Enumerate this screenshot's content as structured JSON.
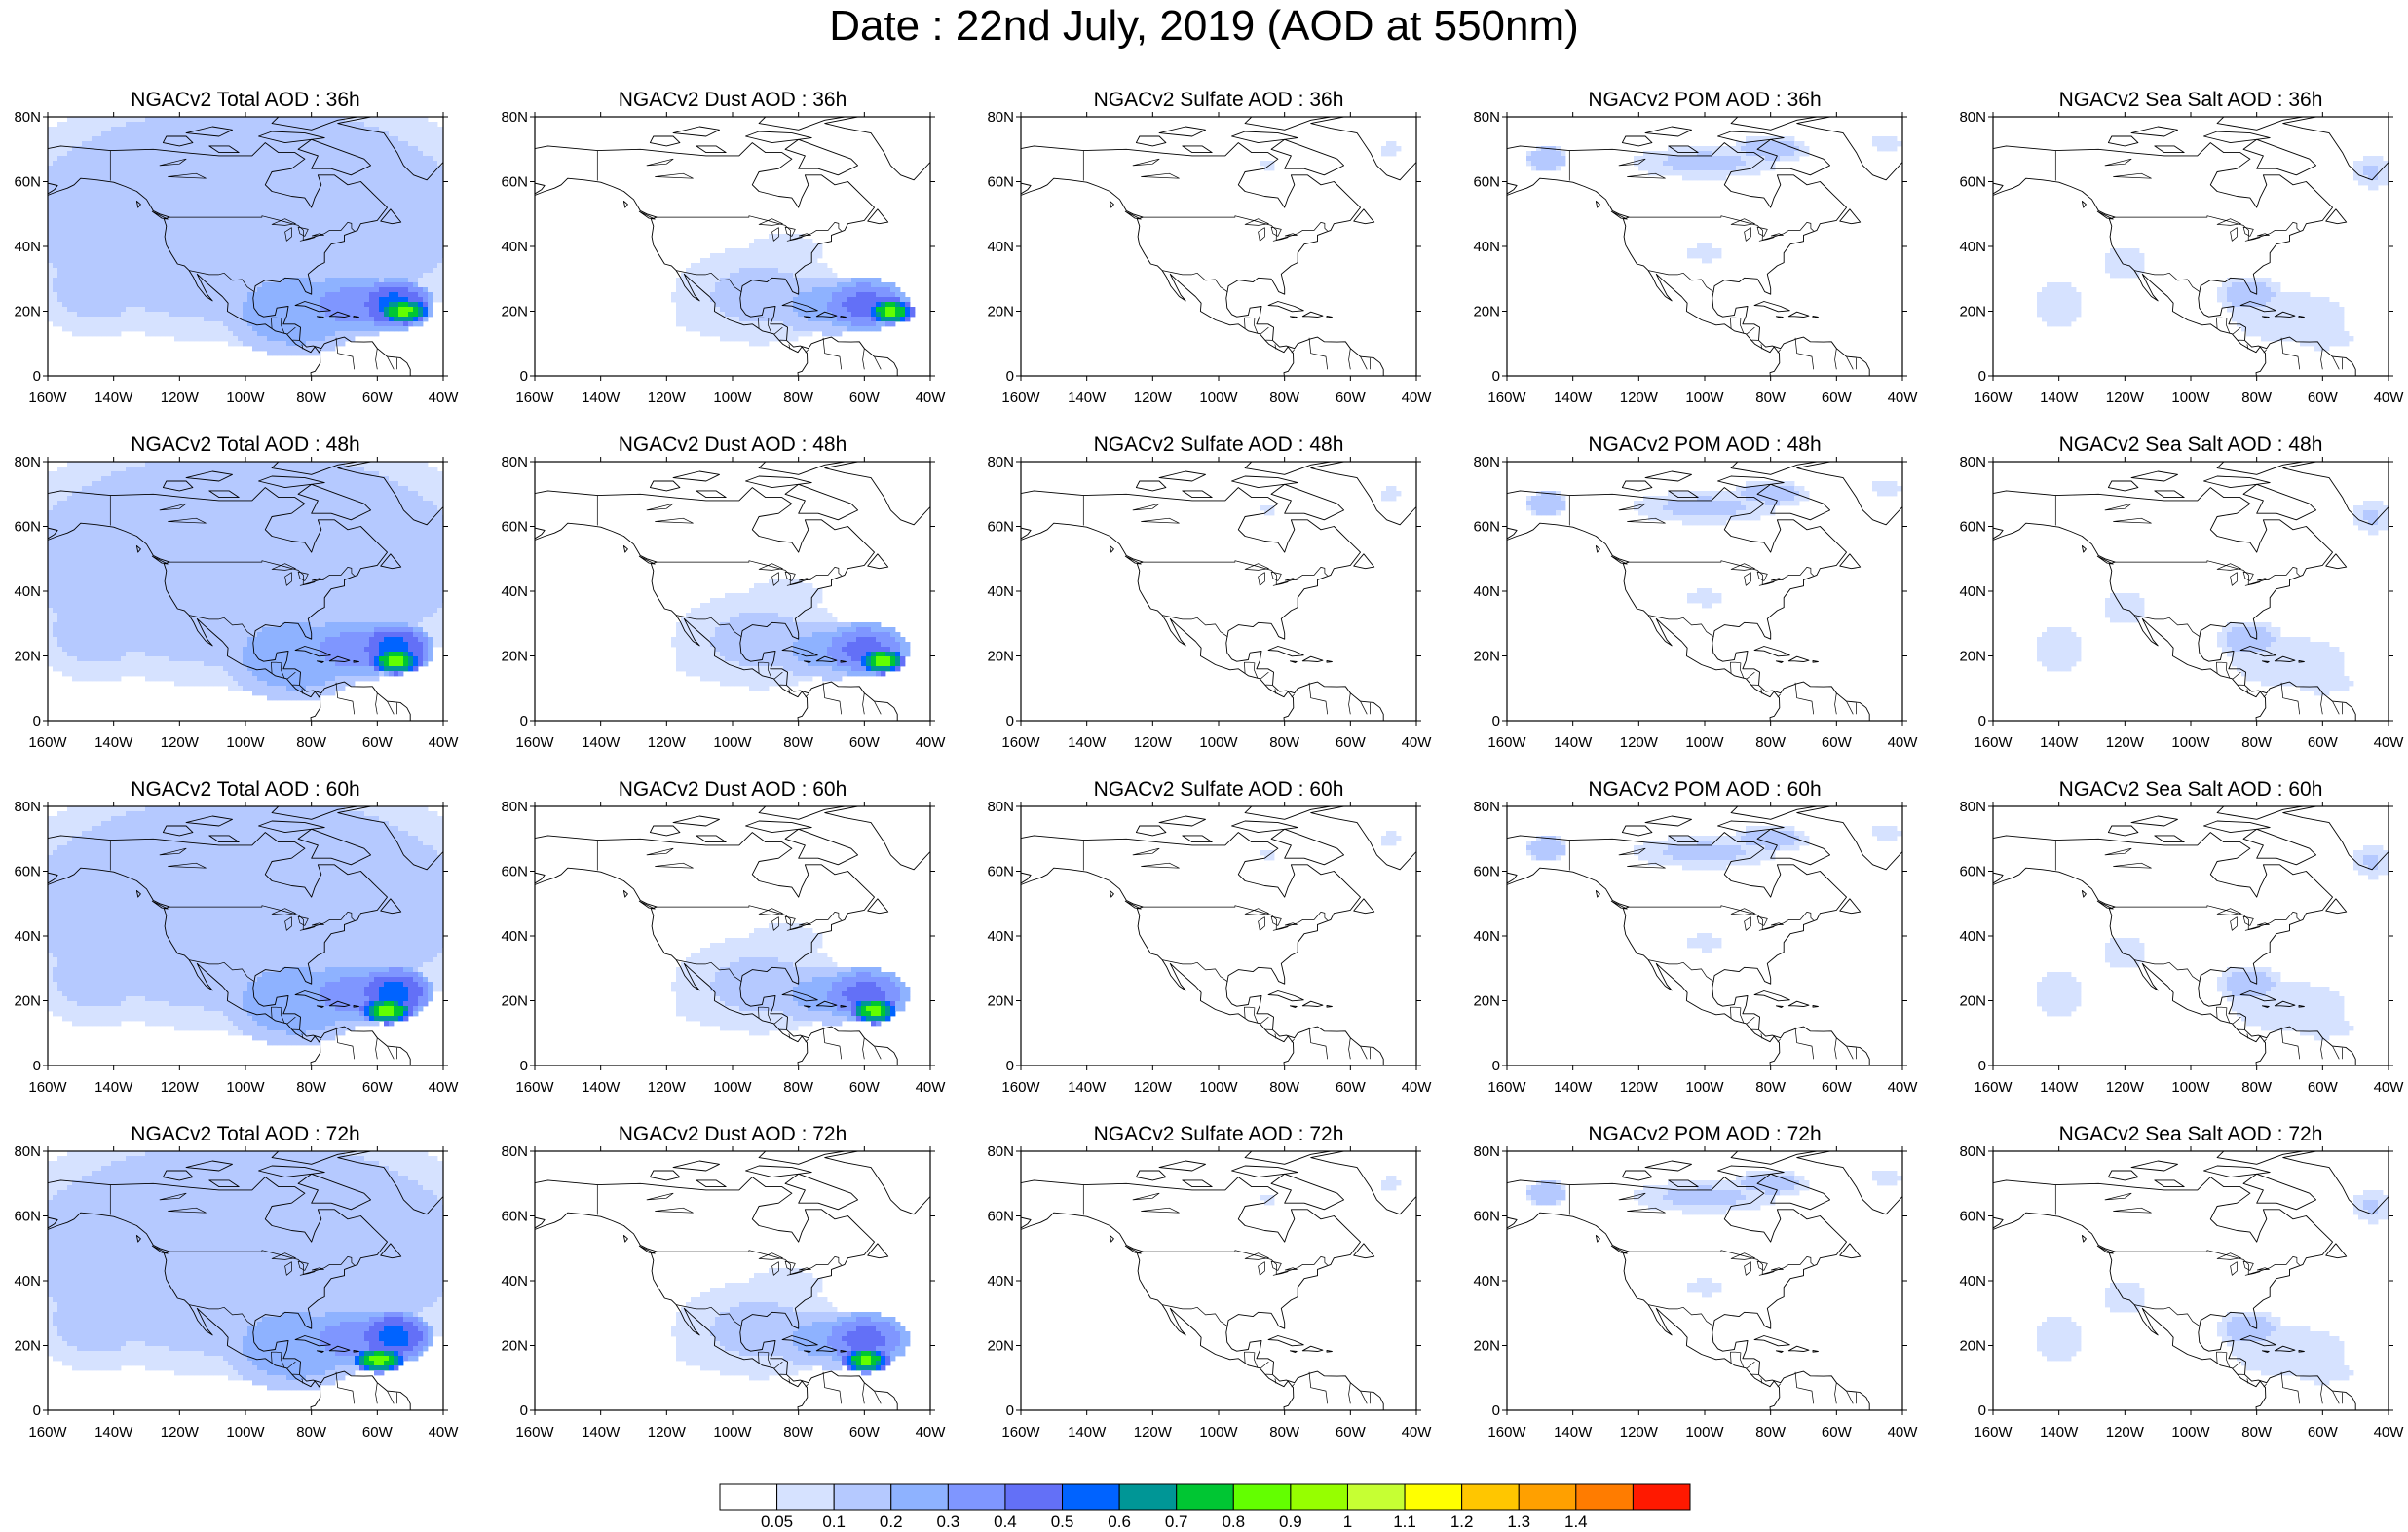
{
  "title": "Date : 22nd July, 2019 (AOD at 550nm)",
  "panels": [
    [
      "NGACv2 Total AOD : 36h",
      "NGACv2 Dust AOD : 36h",
      "NGACv2 Sulfate AOD : 36h",
      "NGACv2 POM AOD : 36h",
      "NGACv2 Sea Salt AOD : 36h"
    ],
    [
      "NGACv2 Total AOD : 48h",
      "NGACv2 Dust AOD : 48h",
      "NGACv2 Sulfate AOD : 48h",
      "NGACv2 POM AOD : 48h",
      "NGACv2 Sea Salt AOD : 48h"
    ],
    [
      "NGACv2 Total AOD : 60h",
      "NGACv2 Dust AOD : 60h",
      "NGACv2 Sulfate AOD : 60h",
      "NGACv2 POM AOD : 60h",
      "NGACv2 Sea Salt AOD : 60h"
    ],
    [
      "NGACv2 Total AOD : 72h",
      "NGACv2 Dust AOD : 72h",
      "NGACv2 Sulfate AOD : 72h",
      "NGACv2 POM AOD : 72h",
      "NGACv2 Sea Salt  AOD : 72h"
    ]
  ],
  "lat_labels": [
    "80N",
    "60N",
    "40N",
    "20N",
    "0"
  ],
  "lon_labels": [
    "160W",
    "140W",
    "120W",
    "100W",
    "80W",
    "60W",
    "40W"
  ],
  "colorbar": {
    "colors": [
      "#ffffff",
      "#d6e2ff",
      "#b5c9ff",
      "#8eb2ff",
      "#7f96ff",
      "#6370f7",
      "#0063ff",
      "#009696",
      "#00c633",
      "#63ff00",
      "#96ff00",
      "#c6ff33",
      "#ffff00",
      "#ffc600",
      "#ffa000",
      "#ff7c00",
      "#ff1900"
    ],
    "labels": [
      "0.05",
      "0.1",
      "0.2",
      "0.3",
      "0.4",
      "0.5",
      "0.6",
      "0.7",
      "0.8",
      "0.9",
      "1",
      "1.1",
      "1.2",
      "1.3",
      "1.4"
    ]
  }
}
